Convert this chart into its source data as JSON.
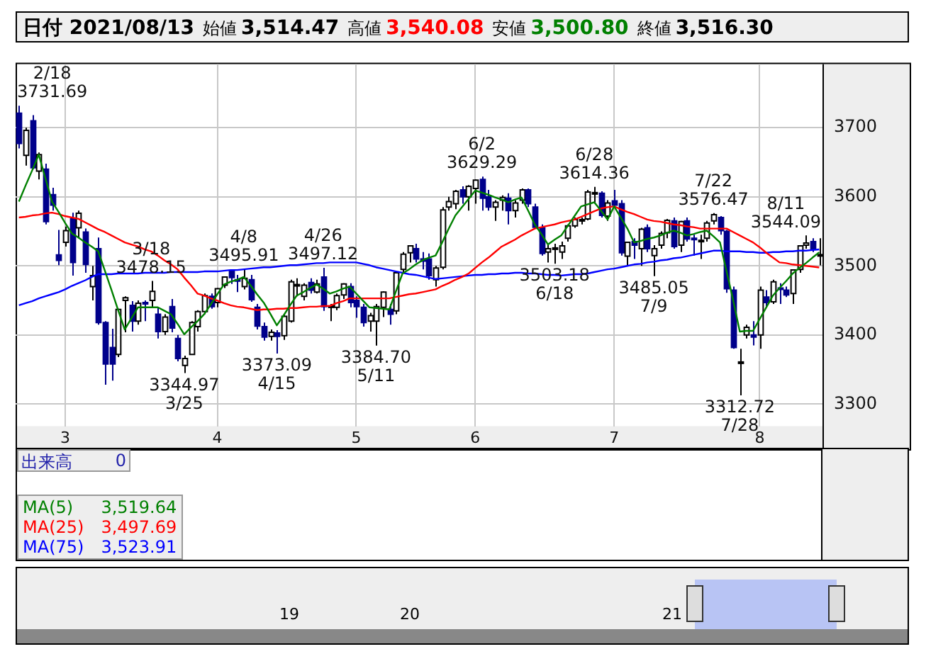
{
  "chart_data": {
    "type": "candlestick",
    "title": "日付 2021/08/13",
    "colors": [
      "#00008b",
      "#ffffff",
      "#00008b",
      "#ffffff",
      "#00008b",
      "#00008b",
      "#00008b",
      "#ffffff",
      "#00008b",
      "#ffffff",
      "#00008b",
      "#ffffff",
      "#00008b",
      "#00008b",
      "#00008b",
      "#ffffff",
      "#ffffff",
      "#00008b",
      "#ffffff",
      "#00008b",
      "#ffffff",
      "#00008b",
      "#ffffff",
      "#00008b",
      "#00008b",
      "#ffffff",
      "#ffffff",
      "#ffffff",
      "#ffffff",
      "#00008b",
      "#ffffff",
      "#ffffff",
      "#00008b",
      "#00008b",
      "#ffffff",
      "#00008b",
      "#00008b",
      "#00008b",
      "#ffffff",
      "#00008b",
      "#ffffff",
      "#ffffff",
      "#ffffff",
      "#ffffff",
      "#00008b",
      "#ffffff",
      "#00008b",
      "#ffffff",
      "#ffffff",
      "#ffffff",
      "#00008b",
      "#00008b",
      "#00008b",
      "#ffffff",
      "#ffffff",
      "#ffffff",
      "#00008b",
      "#ffffff",
      "#ffffff",
      "#ffffff",
      "#00008b",
      "#00008b",
      "#00008b",
      "#ffffff",
      "#ffffff",
      "#ffffff",
      "#ffffff",
      "#00008b",
      "#ffffff",
      "#ffffff",
      "#00008b",
      "#00008b",
      "#ffffff",
      "#ffffff",
      "#00008b",
      "#ffffff",
      "#ffffff",
      "#00008b",
      "#00008b",
      "#00008b",
      "#ffffff",
      "#ffffff",
      "#ffffff",
      "#ffffff",
      "#ffffff",
      "#ffffff",
      "#ffffff",
      "#ffffff",
      "#00008b",
      "#ffffff",
      "#00008b",
      "#00008b",
      "#ffffff",
      "#00008b",
      "#ffffff",
      "#00008b",
      "#ffffff",
      "#ffffff",
      "#ffffff",
      "#00008b",
      "#ffffff",
      "#00008b",
      "#00008b",
      "#ffffff",
      "#ffffff",
      "#ffffff",
      "#00008b",
      "#00008b",
      "#00008b",
      "#ffffff",
      "#ffffff",
      "#00008b",
      "#ffffff",
      "#00008b",
      "#ffffff",
      "#00008b",
      "#00008b",
      "#ffffff",
      "#ffffff",
      "#ffffff",
      "#00008b",
      "#ffffff"
    ],
    "categories": [
      null,
      null,
      null,
      null,
      null,
      null,
      null,
      "3",
      null,
      null,
      null,
      null,
      null,
      null,
      null,
      null,
      null,
      null,
      null,
      null,
      null,
      null,
      null,
      null,
      null,
      null,
      null,
      null,
      null,
      null,
      "4",
      null,
      null,
      null,
      null,
      null,
      null,
      null,
      null,
      null,
      null,
      null,
      null,
      null,
      null,
      null,
      null,
      null,
      null,
      null,
      null,
      "5",
      null,
      null,
      null,
      null,
      null,
      null,
      null,
      null,
      null,
      null,
      null,
      null,
      null,
      null,
      null,
      null,
      null,
      "6",
      null,
      null,
      null,
      null,
      null,
      null,
      null,
      null,
      null,
      null,
      null,
      null,
      null,
      null,
      null,
      null,
      null,
      null,
      null,
      null,
      "7",
      null,
      null,
      null,
      null,
      null,
      null,
      null,
      null,
      null,
      null,
      null,
      null,
      null,
      null,
      null,
      null,
      null,
      null,
      null,
      null,
      null,
      "8",
      null,
      null,
      null,
      null,
      null,
      null,
      null,
      null,
      null
    ],
    "ohlc": [
      [
        3721,
        3731.69,
        3670,
        3677
      ],
      [
        3660,
        3700,
        3645,
        3696
      ],
      [
        3710,
        3718,
        3640,
        3642
      ],
      [
        3637,
        3664,
        3625,
        3661
      ],
      [
        3640,
        3648,
        3560,
        3564
      ],
      [
        3603,
        3613,
        3580,
        3588
      ],
      [
        3516,
        3552,
        3501,
        3508
      ],
      [
        3534,
        3557,
        3528,
        3551
      ],
      [
        3568,
        3577,
        3486,
        3505
      ],
      [
        3555,
        3580,
        3540,
        3576
      ],
      [
        3549,
        3554,
        3490,
        3502
      ],
      [
        3470,
        3500,
        3450,
        3486
      ],
      [
        3525,
        3541,
        3415,
        3418
      ],
      [
        3418,
        3420,
        3328,
        3358
      ],
      [
        3382,
        3409,
        3334,
        3358
      ],
      [
        3372,
        3438,
        3368,
        3437
      ],
      [
        3450,
        3456,
        3404,
        3454
      ],
      [
        3443,
        3449,
        3405,
        3420
      ],
      [
        3420,
        3450,
        3415,
        3446
      ],
      [
        3447,
        3450,
        3420,
        3445
      ],
      [
        3450,
        3478.15,
        3440,
        3463
      ],
      [
        3430,
        3440,
        3395,
        3405
      ],
      [
        3405,
        3430,
        3400,
        3426
      ],
      [
        3441,
        3452,
        3404,
        3410
      ],
      [
        3395,
        3400,
        3362,
        3366
      ],
      [
        3356,
        3370,
        3344.97,
        3366
      ],
      [
        3372,
        3420,
        3372,
        3418
      ],
      [
        3412,
        3436,
        3405,
        3434
      ],
      [
        3434,
        3460,
        3430,
        3457
      ],
      [
        3456,
        3460,
        3438,
        3441
      ],
      [
        3447,
        3468,
        3440,
        3467
      ],
      [
        3472,
        3484,
        3468,
        3484
      ],
      [
        3492,
        3494,
        3474,
        3483
      ],
      [
        3480,
        3487,
        3462,
        3479
      ],
      [
        3470,
        3495.91,
        3466,
        3482
      ],
      [
        3480,
        3487,
        3448,
        3451
      ],
      [
        3440,
        3445,
        3408,
        3413
      ],
      [
        3412,
        3418,
        3392,
        3397
      ],
      [
        3398,
        3408,
        3392,
        3404
      ],
      [
        3403,
        3407,
        3373.09,
        3398
      ],
      [
        3399,
        3430,
        3393,
        3427
      ],
      [
        3420,
        3480,
        3418,
        3477
      ],
      [
        3472,
        3482,
        3456,
        3473
      ],
      [
        3456,
        3475,
        3450,
        3472
      ],
      [
        3476,
        3482,
        3460,
        3465
      ],
      [
        3462,
        3480,
        3460,
        3474
      ],
      [
        3484,
        3497.12,
        3435,
        3441
      ],
      [
        3440,
        3445,
        3420,
        3442
      ],
      [
        3440,
        3460,
        3436,
        3457
      ],
      [
        3458,
        3475,
        3452,
        3474
      ],
      [
        3470,
        3475,
        3440,
        3447
      ],
      [
        3450,
        3456,
        3425,
        3441
      ],
      [
        3440,
        3445,
        3412,
        3418
      ],
      [
        3420,
        3432,
        3405,
        3428
      ],
      [
        3420,
        3445,
        3384.7,
        3441
      ],
      [
        3440,
        3463,
        3426,
        3462
      ],
      [
        3437,
        3445,
        3415,
        3430
      ],
      [
        3435,
        3490,
        3430,
        3490
      ],
      [
        3495,
        3520,
        3490,
        3517
      ],
      [
        3519,
        3530,
        3505,
        3529
      ],
      [
        3525,
        3532,
        3505,
        3510
      ],
      [
        3510,
        3520,
        3495,
        3507
      ],
      [
        3510,
        3518,
        3480,
        3486
      ],
      [
        3480,
        3500,
        3470,
        3497
      ],
      [
        3498,
        3585,
        3495,
        3581
      ],
      [
        3585,
        3600,
        3580,
        3593
      ],
      [
        3590,
        3610,
        3582,
        3608
      ],
      [
        3610,
        3615,
        3590,
        3600
      ],
      [
        3600,
        3617,
        3580,
        3615
      ],
      [
        3612,
        3625,
        3590,
        3624
      ],
      [
        3625,
        3629.29,
        3580,
        3598
      ],
      [
        3600,
        3610,
        3580,
        3585
      ],
      [
        3585,
        3595,
        3565,
        3592
      ],
      [
        3595,
        3602,
        3580,
        3599
      ],
      [
        3598,
        3605,
        3560,
        3580
      ],
      [
        3580,
        3595,
        3570,
        3591
      ],
      [
        3595,
        3612,
        3590,
        3610
      ],
      [
        3610,
        3612,
        3585,
        3590
      ],
      [
        3585,
        3590,
        3555,
        3556
      ],
      [
        3555,
        3560,
        3515,
        3518
      ],
      [
        3520,
        3530,
        3505,
        3525
      ],
      [
        3525,
        3532,
        3503.18,
        3526
      ],
      [
        3520,
        3535,
        3510,
        3529
      ],
      [
        3540,
        3560,
        3535,
        3558
      ],
      [
        3558,
        3570,
        3555,
        3567
      ],
      [
        3566,
        3570,
        3560,
        3567
      ],
      [
        3568,
        3610,
        3566,
        3607
      ],
      [
        3605,
        3614.36,
        3590,
        3606
      ],
      [
        3605,
        3608,
        3570,
        3573
      ],
      [
        3572,
        3595,
        3565,
        3591
      ],
      [
        3594,
        3610,
        3585,
        3588
      ],
      [
        3590,
        3595,
        3515,
        3519
      ],
      [
        3514,
        3535,
        3500,
        3534
      ],
      [
        3535,
        3540,
        3510,
        3530
      ],
      [
        3525,
        3555,
        3500,
        3553
      ],
      [
        3555,
        3560,
        3520,
        3525
      ],
      [
        3515,
        3530,
        3485.05,
        3525
      ],
      [
        3530,
        3550,
        3525,
        3547
      ],
      [
        3548,
        3568,
        3540,
        3566
      ],
      [
        3565,
        3570,
        3525,
        3528
      ],
      [
        3530,
        3565,
        3520,
        3564
      ],
      [
        3565,
        3570,
        3535,
        3539
      ],
      [
        3540,
        3545,
        3515,
        3539
      ],
      [
        3536,
        3545,
        3510,
        3537
      ],
      [
        3540,
        3565,
        3535,
        3562
      ],
      [
        3565,
        3576.47,
        3560,
        3574
      ],
      [
        3570,
        3572,
        3545,
        3551
      ],
      [
        3550,
        3552,
        3461,
        3467
      ],
      [
        3465,
        3470,
        3380,
        3382
      ],
      [
        3360,
        3380,
        3312.72,
        3361
      ],
      [
        3400,
        3415,
        3395,
        3411
      ],
      [
        3400,
        3420,
        3385,
        3397
      ],
      [
        3400,
        3470,
        3380,
        3465
      ],
      [
        3455,
        3465,
        3440,
        3447
      ],
      [
        3448,
        3480,
        3445,
        3477
      ],
      [
        3468,
        3475,
        3445,
        3466
      ],
      [
        3465,
        3470,
        3455,
        3458
      ],
      [
        3460,
        3495,
        3445,
        3494
      ],
      [
        3495,
        3530,
        3490,
        3529
      ],
      [
        3530,
        3544.09,
        3525,
        3533
      ],
      [
        3535,
        3540,
        3520,
        3524
      ],
      [
        3514.47,
        3540.08,
        3500.8,
        3516.3
      ]
    ],
    "series": [
      {
        "type": "line",
        "name": "MA(5)",
        "color": "#008000",
        "values": [
          3593,
          3616,
          3638,
          3661,
          3627,
          3593,
          3578,
          3562,
          3547,
          3541,
          3534,
          3528,
          3521,
          3493,
          3465,
          3436,
          3408,
          3424,
          3440,
          3440,
          3440,
          3440,
          3435,
          3430,
          3416,
          3401,
          3411,
          3420,
          3430,
          3444,
          3459,
          3473,
          3477,
          3480,
          3484,
          3472,
          3459,
          3447,
          3431,
          3414,
          3428,
          3443,
          3457,
          3462,
          3468,
          3473,
          3467,
          3460,
          3463,
          3467,
          3470,
          3460,
          3450,
          3440,
          3439,
          3438,
          3437,
          3463,
          3489,
          3495,
          3502,
          3508,
          3512,
          3515,
          3534,
          3554,
          3573,
          3585,
          3597,
          3609,
          3606,
          3603,
          3599,
          3596,
          3592,
          3596,
          3599,
          3580,
          3560,
          3546,
          3531,
          3538,
          3544,
          3558,
          3572,
          3586,
          3589,
          3592,
          3580,
          3567,
          3586,
          3570,
          3554,
          3534,
          3536,
          3539,
          3541,
          3544,
          3548,
          3551,
          3548,
          3544,
          3546,
          3549,
          3551,
          3543,
          3534,
          3492,
          3450,
          3405,
          3406,
          3406,
          3423,
          3440,
          3457,
          3468,
          3478,
          3489,
          3497,
          3504,
          3512,
          3519.64
        ]
      },
      {
        "type": "line",
        "name": "MA(25)",
        "color": "#ff0000",
        "values": [
          3570,
          3571,
          3573,
          3574,
          3576,
          3577,
          3575,
          3572,
          3570,
          3568,
          3563,
          3558,
          3553,
          3549,
          3544,
          3539,
          3534,
          3531,
          3528,
          3524,
          3521,
          3515,
          3508,
          3502,
          3495,
          3483,
          3472,
          3460,
          3457,
          3453,
          3450,
          3446,
          3443,
          3441,
          3440,
          3438,
          3436,
          3437,
          3437,
          3438,
          3438,
          3439,
          3439,
          3440,
          3441,
          3441,
          3442,
          3442,
          3446,
          3449,
          3453,
          3453,
          3453,
          3453,
          3453,
          3453,
          3453,
          3455,
          3457,
          3459,
          3460,
          3462,
          3464,
          3466,
          3471,
          3475,
          3480,
          3484,
          3489,
          3497,
          3505,
          3512,
          3520,
          3528,
          3533,
          3538,
          3544,
          3549,
          3554,
          3556,
          3558,
          3560,
          3563,
          3565,
          3567,
          3571,
          3575,
          3579,
          3583,
          3585,
          3586,
          3582,
          3578,
          3575,
          3571,
          3567,
          3565,
          3564,
          3562,
          3560,
          3559,
          3557,
          3556,
          3554,
          3554,
          3554,
          3554,
          3554,
          3549,
          3544,
          3539,
          3534,
          3527,
          3519,
          3512,
          3505,
          3504,
          3502,
          3501,
          3500,
          3499,
          3497.69
        ]
      },
      {
        "type": "line",
        "name": "MA(75)",
        "color": "#0000ff",
        "values": [
          3443,
          3446,
          3449,
          3453,
          3456,
          3459,
          3462,
          3466,
          3471,
          3475,
          3479,
          3484,
          3488,
          3488,
          3488,
          3489,
          3489,
          3489,
          3489,
          3490,
          3490,
          3490,
          3490,
          3491,
          3491,
          3491,
          3491,
          3491,
          3492,
          3492,
          3492,
          3493,
          3494,
          3494,
          3495,
          3496,
          3497,
          3498,
          3498,
          3499,
          3500,
          3501,
          3501,
          3502,
          3503,
          3504,
          3504,
          3505,
          3505,
          3505,
          3505,
          3505,
          3503,
          3501,
          3498,
          3496,
          3494,
          3492,
          3490,
          3488,
          3487,
          3485,
          3483,
          3481,
          3482,
          3483,
          3484,
          3485,
          3486,
          3487,
          3487,
          3488,
          3488,
          3489,
          3489,
          3490,
          3490,
          3489,
          3489,
          3488,
          3487,
          3487,
          3486,
          3487,
          3488,
          3488,
          3489,
          3491,
          3493,
          3495,
          3496,
          3498,
          3500,
          3502,
          3503,
          3505,
          3506,
          3508,
          3509,
          3511,
          3512,
          3514,
          3516,
          3518,
          3520,
          3522,
          3522,
          3521,
          3521,
          3521,
          3520,
          3520,
          3519,
          3519,
          3520,
          3520,
          3521,
          3521,
          3522,
          3522,
          3523,
          3523.91
        ]
      }
    ],
    "ylim": [
      3268,
      3792
    ],
    "yticks": [
      3300,
      3400,
      3500,
      3600,
      3700
    ],
    "grid": true,
    "legend": "bottom left",
    "marker": "none",
    "line_style": "solid",
    "annotations": [
      "始値",
      "3,514.47",
      "高値",
      "3,540.08",
      "安値",
      "3,500.80",
      "終値",
      "3,516.30",
      "出来高",
      "0",
      "3,519.64",
      "3,497.69",
      "3,523.91",
      "19",
      "20",
      "21",
      "2/18\n3731.69",
      "3/18\n3478.15",
      "3344.97\n3/25",
      "4/8\n3495.91",
      "3373.09\n4/15",
      "4/26\n3497.12",
      "3384.70\n5/11",
      "6/2\n3629.29",
      "3503.18\n6/18",
      "6/28\n3614.36",
      "3485.05\n7/9",
      "7/22\n3576.47",
      "3312.72\n7/28",
      "8/11\n3544.09"
    ]
  }
}
